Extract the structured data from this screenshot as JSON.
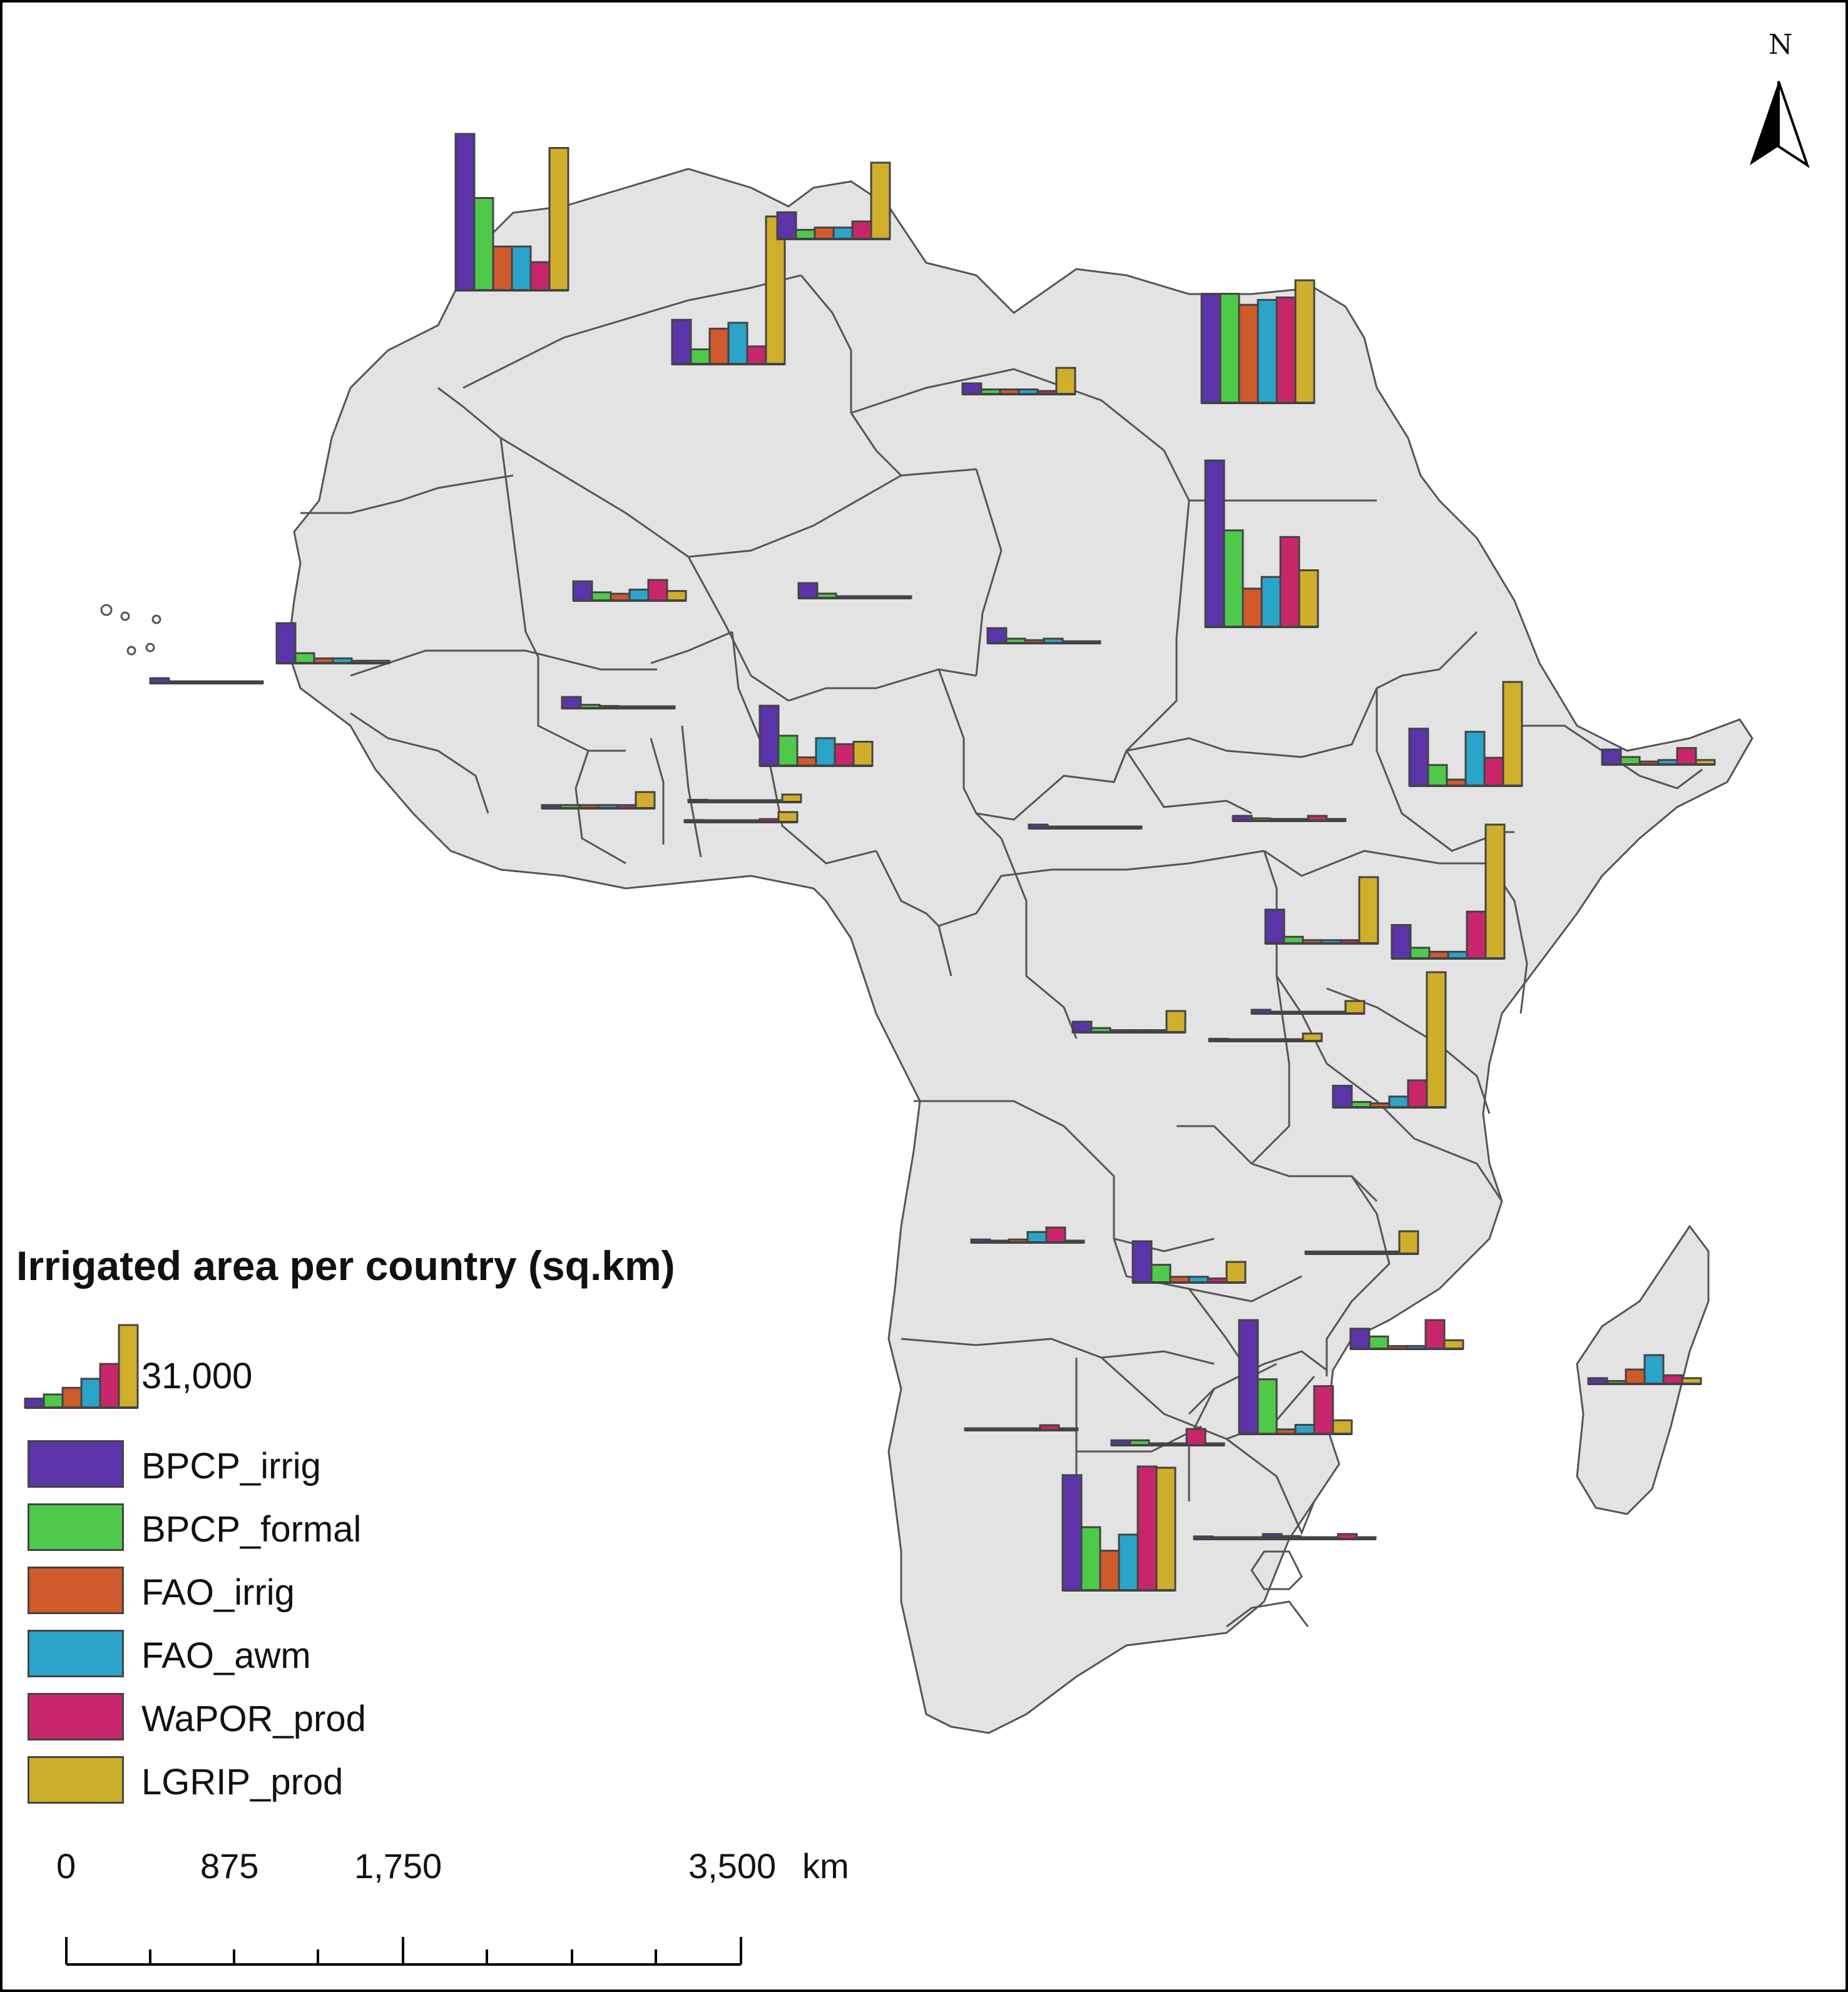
{
  "legend": {
    "title": "Irrigated area per country (sq.km)",
    "reference_value": "31,000",
    "reference_series_fractions": [
      0.11,
      0.16,
      0.24,
      0.35,
      0.53,
      1.0
    ],
    "series": [
      {
        "label": "BPCP_irrig",
        "color": "#5a34a8"
      },
      {
        "label": "BPCP_formal",
        "color": "#4fc94a"
      },
      {
        "label": "FAO_irrig",
        "color": "#cf5a2c"
      },
      {
        "label": "FAO_awm",
        "color": "#2aa4c8"
      },
      {
        "label": "WaPOR_prod",
        "color": "#c8266a"
      },
      {
        "label": "LGRIP_prod",
        "color": "#cfae2c"
      }
    ]
  },
  "north_arrow": {
    "label": "N",
    "icon": "north-arrow-icon"
  },
  "scale_bar": {
    "labels": [
      "0",
      "875",
      "1,750",
      "3,500"
    ],
    "unit": "km"
  },
  "colors": {
    "land": "#e3e3e3",
    "border": "#555555",
    "ocean": "#ffffff",
    "bar_outline": "#444444"
  },
  "country_charts": [
    {
      "id": "morocco",
      "values": [
        1.0,
        0.59,
        0.28,
        0.28,
        0.18,
        0.91
      ]
    },
    {
      "id": "algeria",
      "values": [
        0.3,
        0.1,
        0.24,
        0.28,
        0.12,
        1.0
      ]
    },
    {
      "id": "tunisia",
      "values": [
        0.35,
        0.12,
        0.15,
        0.15,
        0.23,
        1.0
      ]
    },
    {
      "id": "libya",
      "values": [
        0.41,
        0.18,
        0.18,
        0.18,
        0.12,
        1.0
      ]
    },
    {
      "id": "egypt",
      "values": [
        0.89,
        0.89,
        0.8,
        0.84,
        0.86,
        1.0
      ]
    },
    {
      "id": "sudan",
      "values": [
        1.0,
        0.58,
        0.23,
        0.3,
        0.54,
        0.34
      ]
    },
    {
      "id": "mali",
      "values": [
        0.7,
        0.3,
        0.25,
        0.4,
        0.75,
        0.35
      ]
    },
    {
      "id": "niger",
      "values": [
        1.0,
        0.3,
        0.1,
        0.1,
        0.1,
        0.1
      ]
    },
    {
      "id": "chad",
      "values": [
        1.0,
        0.3,
        0.2,
        0.3,
        0.1,
        0.1
      ]
    },
    {
      "id": "senegal",
      "values": [
        1.0,
        0.25,
        0.12,
        0.12,
        0.06,
        0.06
      ]
    },
    {
      "id": "mauritania",
      "values": [
        1.0,
        0.2,
        0.2,
        0.1,
        0.1,
        0.1
      ]
    },
    {
      "id": "burkina",
      "values": [
        1.0,
        0.3,
        0.2,
        0.1,
        0.1,
        0.1
      ]
    },
    {
      "id": "nigeria",
      "values": [
        1.0,
        0.5,
        0.14,
        0.46,
        0.36,
        0.4
      ]
    },
    {
      "id": "ghana",
      "values": [
        0.2,
        0.2,
        0.2,
        0.2,
        0.2,
        1.0
      ]
    },
    {
      "id": "benin",
      "values": [
        0.3,
        0.1,
        0.1,
        0.1,
        0.1,
        1.0
      ]
    },
    {
      "id": "togo",
      "values": [
        0.2,
        0.1,
        0.1,
        0.1,
        0.3,
        1.0
      ]
    },
    {
      "id": "ethiopia",
      "values": [
        0.55,
        0.2,
        0.06,
        0.52,
        0.27,
        1.0
      ]
    },
    {
      "id": "somalia",
      "values": [
        1.0,
        0.5,
        0.2,
        0.3,
        1.1,
        0.3
      ]
    },
    {
      "id": "southsudan",
      "values": [
        1.0,
        0.5,
        0.3,
        0.3,
        1.0,
        0.3
      ]
    },
    {
      "id": "car",
      "values": [
        1.0,
        0.4,
        0.2,
        0.2,
        0.1,
        0.1
      ]
    },
    {
      "id": "uganda",
      "values": [
        0.51,
        0.1,
        0.05,
        0.05,
        0.05,
        1.0
      ]
    },
    {
      "id": "kenya",
      "values": [
        0.25,
        0.08,
        0.05,
        0.05,
        0.35,
        1.0
      ]
    },
    {
      "id": "tanzania",
      "values": [
        0.16,
        0.04,
        0.03,
        0.08,
        0.2,
        1.0
      ]
    },
    {
      "id": "drc",
      "values": [
        0.5,
        0.2,
        0.1,
        0.1,
        0.1,
        1.0
      ]
    },
    {
      "id": "rwanda",
      "values": [
        0.3,
        0.1,
        0.1,
        0.1,
        0.1,
        1.0
      ]
    },
    {
      "id": "burundi",
      "values": [
        0.3,
        0.1,
        0.1,
        0.1,
        0.1,
        1.0
      ]
    },
    {
      "id": "angola",
      "values": [
        0.2,
        0.1,
        0.2,
        0.7,
        1.0,
        0.1
      ]
    },
    {
      "id": "zambia",
      "values": [
        1.0,
        0.43,
        0.14,
        0.14,
        0.1,
        0.5
      ]
    },
    {
      "id": "malawi",
      "values": [
        0.1,
        0.1,
        0.1,
        0.1,
        0.1,
        1.0
      ]
    },
    {
      "id": "mozambique",
      "values": [
        0.7,
        0.43,
        0.1,
        0.1,
        1.0,
        0.3
      ]
    },
    {
      "id": "madagascar",
      "values": [
        0.2,
        0.1,
        0.5,
        1.0,
        0.3,
        0.2
      ]
    },
    {
      "id": "zimbabwe",
      "values": [
        1.0,
        0.48,
        0.04,
        0.08,
        0.42,
        0.12
      ]
    },
    {
      "id": "namibia",
      "values": [
        0.2,
        0.1,
        0.1,
        0.1,
        1.0,
        0.1
      ]
    },
    {
      "id": "botswana",
      "values": [
        0.3,
        0.3,
        0.1,
        0.1,
        1.0,
        0.1
      ]
    },
    {
      "id": "southafrica",
      "values": [
        0.93,
        0.51,
        0.32,
        0.45,
        1.0,
        0.99
      ]
    },
    {
      "id": "swaziland",
      "values": [
        1.0,
        0.6,
        0.3,
        0.3,
        1.0,
        0.3
      ]
    },
    {
      "id": "lesotho",
      "values": [
        0.3,
        0.1,
        0.1,
        0.1,
        0.1,
        0.1
      ]
    }
  ]
}
